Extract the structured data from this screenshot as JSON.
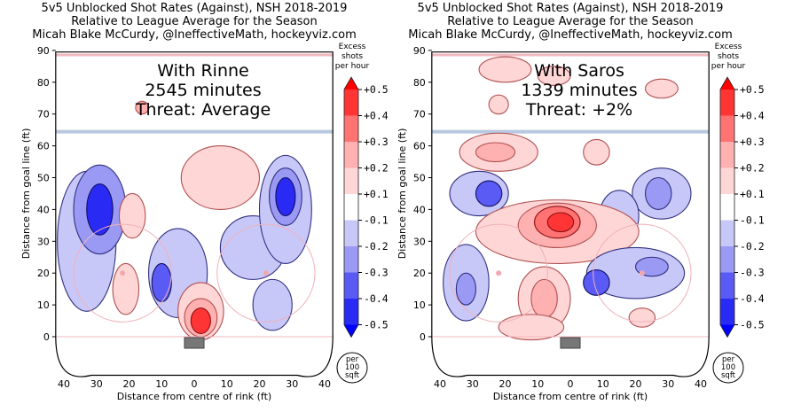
{
  "chart_data": [
    {
      "type": "heatmap",
      "title": [
        "5v5 Unblocked Shot Rates (Against), NSH 2018-2019",
        "Relative to League Average for the Season",
        "Micah Blake McCurdy, @IneffectiveMath, hockeyviz.com"
      ],
      "annotation": [
        "With Rinne",
        "2545 minutes",
        "Threat: Average"
      ],
      "xlabel": "Distance from centre of rink (ft)",
      "ylabel": "Distance from goal line (ft)",
      "xlim": [
        -40,
        40
      ],
      "ylim": [
        0,
        90
      ],
      "xticks": [
        "40",
        "30",
        "20",
        "10",
        "0",
        "10",
        "20",
        "30",
        "40"
      ],
      "yticks": [
        "0",
        "10",
        "20",
        "30",
        "40",
        "50",
        "60",
        "70",
        "80",
        "90"
      ],
      "regions": [
        {
          "x": -33,
          "y": 30,
          "rx": 9,
          "ry": 22,
          "level": -0.1
        },
        {
          "x": -29,
          "y": 40,
          "rx": 8,
          "ry": 14,
          "level": -0.2
        },
        {
          "x": -29,
          "y": 40,
          "rx": 4,
          "ry": 8,
          "level": -0.4
        },
        {
          "x": -19,
          "y": 38,
          "rx": 4,
          "ry": 7,
          "level": 0.1
        },
        {
          "x": 8,
          "y": 50,
          "rx": 12,
          "ry": 10,
          "level": 0.1
        },
        {
          "x": -21,
          "y": 15,
          "rx": 4,
          "ry": 8,
          "level": 0.1
        },
        {
          "x": -5,
          "y": 20,
          "rx": 9,
          "ry": 14,
          "level": -0.1
        },
        {
          "x": -10,
          "y": 17,
          "rx": 3,
          "ry": 6,
          "level": -0.3
        },
        {
          "x": 2,
          "y": 8,
          "rx": 7,
          "ry": 9,
          "level": 0.1
        },
        {
          "x": 2,
          "y": 6,
          "rx": 5,
          "ry": 6,
          "level": 0.2
        },
        {
          "x": 2,
          "y": 5,
          "rx": 3,
          "ry": 4,
          "level": 0.4
        },
        {
          "x": 18,
          "y": 28,
          "rx": 10,
          "ry": 10,
          "level": -0.1
        },
        {
          "x": 24,
          "y": 10,
          "rx": 6,
          "ry": 8,
          "level": -0.1
        },
        {
          "x": 28,
          "y": 40,
          "rx": 8,
          "ry": 17,
          "level": -0.1
        },
        {
          "x": 28,
          "y": 44,
          "rx": 5,
          "ry": 9,
          "level": -0.2
        },
        {
          "x": 28,
          "y": 44,
          "rx": 3,
          "ry": 6,
          "level": -0.4
        },
        {
          "x": -16,
          "y": 72,
          "rx": 2,
          "ry": 2,
          "level": 0.2
        }
      ]
    },
    {
      "type": "heatmap",
      "title": [
        "5v5 Unblocked Shot Rates (Against), NSH 2018-2019",
        "Relative to League Average for the Season",
        "Micah Blake McCurdy, @IneffectiveMath, hockeyviz.com"
      ],
      "annotation": [
        "With Saros",
        "1339 minutes",
        "Threat: +2%"
      ],
      "xlabel": "Distance from centre of rink (ft)",
      "ylabel": "Distance from goal line (ft)",
      "xlim": [
        -40,
        40
      ],
      "ylim": [
        0,
        90
      ],
      "xticks": [
        "40",
        "30",
        "20",
        "10",
        "0",
        "10",
        "20",
        "30",
        "40"
      ],
      "yticks": [
        "0",
        "10",
        "20",
        "30",
        "40",
        "50",
        "60",
        "70",
        "80",
        "90"
      ],
      "regions": [
        {
          "x": -20,
          "y": 84,
          "rx": 8,
          "ry": 4,
          "level": 0.1
        },
        {
          "x": -5,
          "y": 82,
          "rx": 5,
          "ry": 3,
          "level": 0.1
        },
        {
          "x": 28,
          "y": 78,
          "rx": 5,
          "ry": 3,
          "level": 0.1
        },
        {
          "x": -22,
          "y": 73,
          "rx": 3,
          "ry": 3,
          "level": 0.1
        },
        {
          "x": -22,
          "y": 58,
          "rx": 12,
          "ry": 6,
          "level": 0.1
        },
        {
          "x": -23,
          "y": 58,
          "rx": 6,
          "ry": 3,
          "level": 0.2
        },
        {
          "x": 8,
          "y": 58,
          "rx": 4,
          "ry": 4,
          "level": 0.1
        },
        {
          "x": -28,
          "y": 45,
          "rx": 9,
          "ry": 7,
          "level": -0.1
        },
        {
          "x": -25,
          "y": 45,
          "rx": 4,
          "ry": 4,
          "level": -0.3
        },
        {
          "x": 28,
          "y": 45,
          "rx": 9,
          "ry": 8,
          "level": -0.1
        },
        {
          "x": 27,
          "y": 45,
          "rx": 4,
          "ry": 5,
          "level": -0.2
        },
        {
          "x": 15,
          "y": 38,
          "rx": 6,
          "ry": 8,
          "level": -0.1
        },
        {
          "x": -4,
          "y": 33,
          "rx": 25,
          "ry": 10,
          "level": 0.1
        },
        {
          "x": -4,
          "y": 35,
          "rx": 12,
          "ry": 7,
          "level": 0.2
        },
        {
          "x": -4,
          "y": 36,
          "rx": 7,
          "ry": 5,
          "level": 0.3
        },
        {
          "x": -3,
          "y": 36,
          "rx": 4,
          "ry": 3,
          "level": 0.4
        },
        {
          "x": -32,
          "y": 17,
          "rx": 7,
          "ry": 12,
          "level": -0.1
        },
        {
          "x": -32,
          "y": 15,
          "rx": 3,
          "ry": 5,
          "level": -0.2
        },
        {
          "x": -8,
          "y": 12,
          "rx": 8,
          "ry": 10,
          "level": 0.1
        },
        {
          "x": -8,
          "y": 12,
          "rx": 4,
          "ry": 6,
          "level": 0.2
        },
        {
          "x": -12,
          "y": 3,
          "rx": 10,
          "ry": 4,
          "level": 0.1
        },
        {
          "x": 20,
          "y": 20,
          "rx": 15,
          "ry": 8,
          "level": -0.1
        },
        {
          "x": 8,
          "y": 17,
          "rx": 4,
          "ry": 4,
          "level": -0.3
        },
        {
          "x": 25,
          "y": 22,
          "rx": 5,
          "ry": 3,
          "level": -0.2
        },
        {
          "x": 22,
          "y": 6,
          "rx": 4,
          "ry": 3,
          "level": 0.1
        }
      ]
    }
  ],
  "colorbar": {
    "title": [
      "Excess",
      "shots",
      "per hour"
    ],
    "ticks": [
      "+0.5",
      "+0.4",
      "+0.3",
      "+0.2",
      "+0.1",
      "-0.1",
      "-0.2",
      "-0.3",
      "-0.4",
      "-0.5"
    ],
    "colors": [
      "#ff0000",
      "#ff3535",
      "#ff7373",
      "#ffb0b0",
      "#ffd6d6",
      "#ffffff",
      "#c8c8f8",
      "#9a9af5",
      "#5a5af5",
      "#2a2af5",
      "#0000ff"
    ],
    "unit": [
      "per",
      "100",
      "sqft"
    ]
  }
}
